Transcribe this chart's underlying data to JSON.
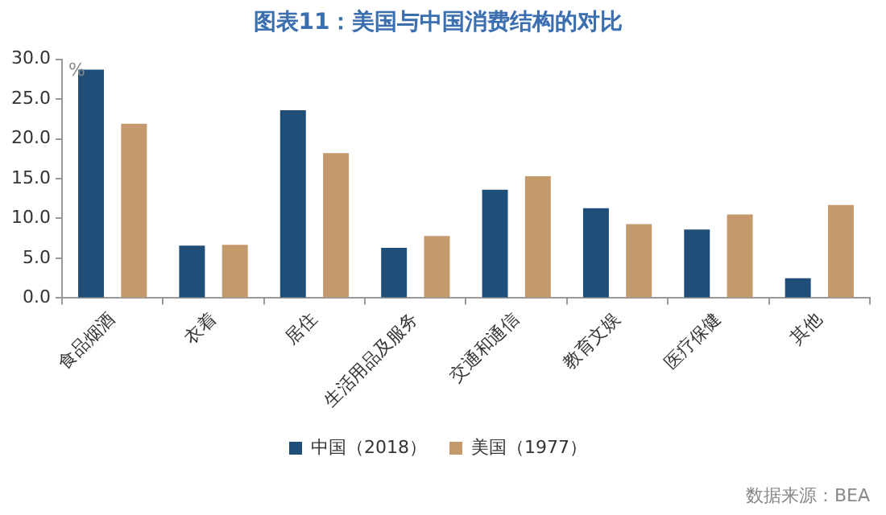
{
  "chart_data": {
    "type": "bar",
    "title": "图表11：美国与中国消费结构的对比",
    "ylabel": "%",
    "categories": [
      "食品烟酒",
      "衣着",
      "居住",
      "生活用品及服务",
      "交通和通信",
      "教育文娱",
      "医疗保健",
      "其他"
    ],
    "series": [
      {
        "name": "中国（2018）",
        "color": "#1f4e79",
        "values": [
          28.7,
          6.6,
          23.6,
          6.3,
          13.6,
          11.3,
          8.6,
          2.5
        ]
      },
      {
        "name": "美国（1977）",
        "color": "#c49a6c",
        "values": [
          21.9,
          6.7,
          18.2,
          7.8,
          15.3,
          9.3,
          10.5,
          11.7
        ]
      }
    ],
    "ylim": [
      0,
      30
    ],
    "yticks": [
      {
        "value": 0,
        "label": "0.0"
      },
      {
        "value": 5,
        "label": "5.0"
      },
      {
        "value": 10,
        "label": "10.0"
      },
      {
        "value": 15,
        "label": "15.0"
      },
      {
        "value": 20,
        "label": "20.0"
      },
      {
        "value": 25,
        "label": "25.0"
      },
      {
        "value": 30,
        "label": "30.0"
      }
    ],
    "legend": "bottom",
    "annotations": [
      "数据来源：BEA"
    ]
  }
}
